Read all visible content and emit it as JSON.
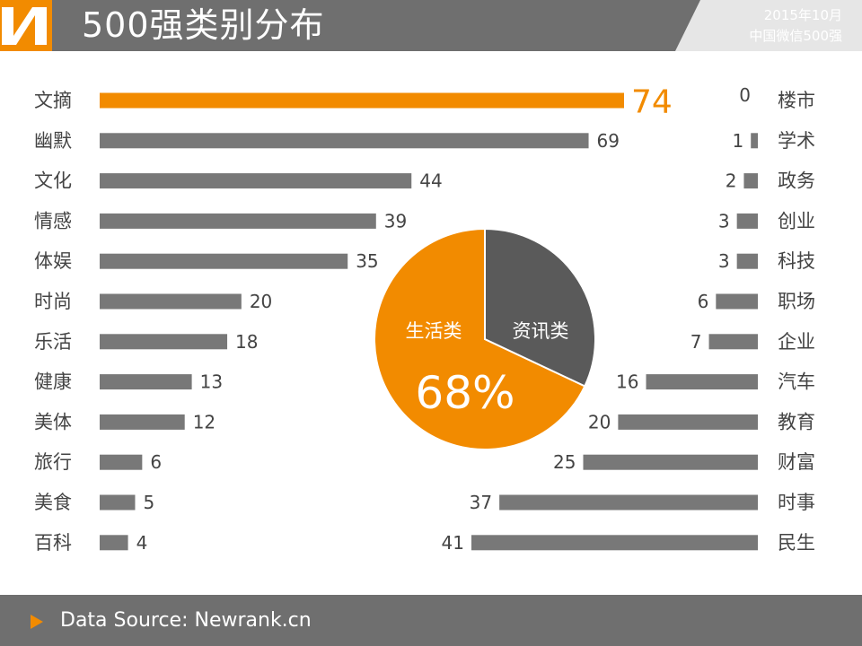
{
  "header": {
    "title": "500强类别分布",
    "date": "2015年10月",
    "source_line": "中国微信500强"
  },
  "footer": {
    "text": "Data Source: Newrank.cn"
  },
  "colors": {
    "header_bg": "#6f6f6f",
    "accent": "#f28b00",
    "bar_gray": "#787878",
    "pie_dark": "#5a5a5a",
    "label_text": "#444444"
  },
  "icons": {
    "logo": "newrank-n-logo",
    "footer_bullet": "triangle-right-icon"
  },
  "chart_data": [
    {
      "type": "bar",
      "orientation": "horizontal",
      "name": "生活类",
      "categories": [
        "文摘",
        "幽默",
        "文化",
        "情感",
        "体娱",
        "时尚",
        "乐活",
        "健康",
        "美体",
        "旅行",
        "美食",
        "百科"
      ],
      "values": [
        74,
        69,
        44,
        39,
        35,
        20,
        18,
        13,
        12,
        6,
        5,
        4
      ],
      "highlight_index": 0,
      "data_labels": true
    },
    {
      "type": "bar",
      "orientation": "horizontal",
      "direction": "right-to-left",
      "name": "资讯类",
      "categories": [
        "楼市",
        "学术",
        "政务",
        "创业",
        "科技",
        "职场",
        "企业",
        "汽车",
        "教育",
        "财富",
        "时事",
        "民生"
      ],
      "values": [
        0,
        1,
        2,
        3,
        3,
        6,
        7,
        16,
        20,
        25,
        37,
        41
      ],
      "data_labels": true
    },
    {
      "type": "pie",
      "labels": [
        "生活类",
        "资讯类"
      ],
      "values": [
        68,
        32
      ],
      "colors": [
        "#f28b00",
        "#5a5a5a"
      ],
      "percent_label": "68%"
    }
  ]
}
